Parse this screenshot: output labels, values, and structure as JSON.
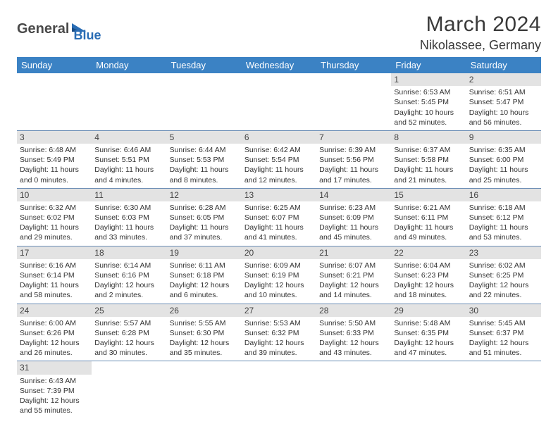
{
  "logo": {
    "part1": "General",
    "part2": "Blue"
  },
  "title": "March 2024",
  "location": "Nikolassee, Germany",
  "day_headers": [
    "Sunday",
    "Monday",
    "Tuesday",
    "Wednesday",
    "Thursday",
    "Friday",
    "Saturday"
  ],
  "colors": {
    "header_bg": "#3b82c4",
    "header_fg": "#ffffff",
    "day_strip_bg": "#e3e3e3",
    "rule": "#6a8db5",
    "logo_accent": "#2a6db5",
    "text": "#333333"
  },
  "weeks": [
    [
      null,
      null,
      null,
      null,
      null,
      {
        "n": "1",
        "sunrise": "Sunrise: 6:53 AM",
        "sunset": "Sunset: 5:45 PM",
        "day1": "Daylight: 10 hours",
        "day2": "and 52 minutes."
      },
      {
        "n": "2",
        "sunrise": "Sunrise: 6:51 AM",
        "sunset": "Sunset: 5:47 PM",
        "day1": "Daylight: 10 hours",
        "day2": "and 56 minutes."
      }
    ],
    [
      {
        "n": "3",
        "sunrise": "Sunrise: 6:48 AM",
        "sunset": "Sunset: 5:49 PM",
        "day1": "Daylight: 11 hours",
        "day2": "and 0 minutes."
      },
      {
        "n": "4",
        "sunrise": "Sunrise: 6:46 AM",
        "sunset": "Sunset: 5:51 PM",
        "day1": "Daylight: 11 hours",
        "day2": "and 4 minutes."
      },
      {
        "n": "5",
        "sunrise": "Sunrise: 6:44 AM",
        "sunset": "Sunset: 5:53 PM",
        "day1": "Daylight: 11 hours",
        "day2": "and 8 minutes."
      },
      {
        "n": "6",
        "sunrise": "Sunrise: 6:42 AM",
        "sunset": "Sunset: 5:54 PM",
        "day1": "Daylight: 11 hours",
        "day2": "and 12 minutes."
      },
      {
        "n": "7",
        "sunrise": "Sunrise: 6:39 AM",
        "sunset": "Sunset: 5:56 PM",
        "day1": "Daylight: 11 hours",
        "day2": "and 17 minutes."
      },
      {
        "n": "8",
        "sunrise": "Sunrise: 6:37 AM",
        "sunset": "Sunset: 5:58 PM",
        "day1": "Daylight: 11 hours",
        "day2": "and 21 minutes."
      },
      {
        "n": "9",
        "sunrise": "Sunrise: 6:35 AM",
        "sunset": "Sunset: 6:00 PM",
        "day1": "Daylight: 11 hours",
        "day2": "and 25 minutes."
      }
    ],
    [
      {
        "n": "10",
        "sunrise": "Sunrise: 6:32 AM",
        "sunset": "Sunset: 6:02 PM",
        "day1": "Daylight: 11 hours",
        "day2": "and 29 minutes."
      },
      {
        "n": "11",
        "sunrise": "Sunrise: 6:30 AM",
        "sunset": "Sunset: 6:03 PM",
        "day1": "Daylight: 11 hours",
        "day2": "and 33 minutes."
      },
      {
        "n": "12",
        "sunrise": "Sunrise: 6:28 AM",
        "sunset": "Sunset: 6:05 PM",
        "day1": "Daylight: 11 hours",
        "day2": "and 37 minutes."
      },
      {
        "n": "13",
        "sunrise": "Sunrise: 6:25 AM",
        "sunset": "Sunset: 6:07 PM",
        "day1": "Daylight: 11 hours",
        "day2": "and 41 minutes."
      },
      {
        "n": "14",
        "sunrise": "Sunrise: 6:23 AM",
        "sunset": "Sunset: 6:09 PM",
        "day1": "Daylight: 11 hours",
        "day2": "and 45 minutes."
      },
      {
        "n": "15",
        "sunrise": "Sunrise: 6:21 AM",
        "sunset": "Sunset: 6:11 PM",
        "day1": "Daylight: 11 hours",
        "day2": "and 49 minutes."
      },
      {
        "n": "16",
        "sunrise": "Sunrise: 6:18 AM",
        "sunset": "Sunset: 6:12 PM",
        "day1": "Daylight: 11 hours",
        "day2": "and 53 minutes."
      }
    ],
    [
      {
        "n": "17",
        "sunrise": "Sunrise: 6:16 AM",
        "sunset": "Sunset: 6:14 PM",
        "day1": "Daylight: 11 hours",
        "day2": "and 58 minutes."
      },
      {
        "n": "18",
        "sunrise": "Sunrise: 6:14 AM",
        "sunset": "Sunset: 6:16 PM",
        "day1": "Daylight: 12 hours",
        "day2": "and 2 minutes."
      },
      {
        "n": "19",
        "sunrise": "Sunrise: 6:11 AM",
        "sunset": "Sunset: 6:18 PM",
        "day1": "Daylight: 12 hours",
        "day2": "and 6 minutes."
      },
      {
        "n": "20",
        "sunrise": "Sunrise: 6:09 AM",
        "sunset": "Sunset: 6:19 PM",
        "day1": "Daylight: 12 hours",
        "day2": "and 10 minutes."
      },
      {
        "n": "21",
        "sunrise": "Sunrise: 6:07 AM",
        "sunset": "Sunset: 6:21 PM",
        "day1": "Daylight: 12 hours",
        "day2": "and 14 minutes."
      },
      {
        "n": "22",
        "sunrise": "Sunrise: 6:04 AM",
        "sunset": "Sunset: 6:23 PM",
        "day1": "Daylight: 12 hours",
        "day2": "and 18 minutes."
      },
      {
        "n": "23",
        "sunrise": "Sunrise: 6:02 AM",
        "sunset": "Sunset: 6:25 PM",
        "day1": "Daylight: 12 hours",
        "day2": "and 22 minutes."
      }
    ],
    [
      {
        "n": "24",
        "sunrise": "Sunrise: 6:00 AM",
        "sunset": "Sunset: 6:26 PM",
        "day1": "Daylight: 12 hours",
        "day2": "and 26 minutes."
      },
      {
        "n": "25",
        "sunrise": "Sunrise: 5:57 AM",
        "sunset": "Sunset: 6:28 PM",
        "day1": "Daylight: 12 hours",
        "day2": "and 30 minutes."
      },
      {
        "n": "26",
        "sunrise": "Sunrise: 5:55 AM",
        "sunset": "Sunset: 6:30 PM",
        "day1": "Daylight: 12 hours",
        "day2": "and 35 minutes."
      },
      {
        "n": "27",
        "sunrise": "Sunrise: 5:53 AM",
        "sunset": "Sunset: 6:32 PM",
        "day1": "Daylight: 12 hours",
        "day2": "and 39 minutes."
      },
      {
        "n": "28",
        "sunrise": "Sunrise: 5:50 AM",
        "sunset": "Sunset: 6:33 PM",
        "day1": "Daylight: 12 hours",
        "day2": "and 43 minutes."
      },
      {
        "n": "29",
        "sunrise": "Sunrise: 5:48 AM",
        "sunset": "Sunset: 6:35 PM",
        "day1": "Daylight: 12 hours",
        "day2": "and 47 minutes."
      },
      {
        "n": "30",
        "sunrise": "Sunrise: 5:45 AM",
        "sunset": "Sunset: 6:37 PM",
        "day1": "Daylight: 12 hours",
        "day2": "and 51 minutes."
      }
    ],
    [
      {
        "n": "31",
        "sunrise": "Sunrise: 6:43 AM",
        "sunset": "Sunset: 7:39 PM",
        "day1": "Daylight: 12 hours",
        "day2": "and 55 minutes."
      },
      null,
      null,
      null,
      null,
      null,
      null
    ]
  ]
}
